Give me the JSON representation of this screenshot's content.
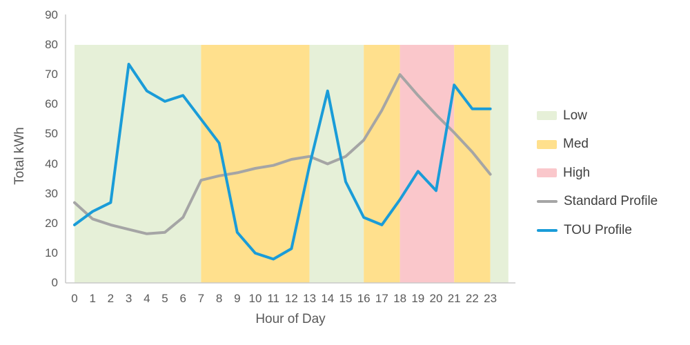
{
  "chart_data": {
    "type": "line",
    "xlabel": "Hour of Day",
    "ylabel": "Total kWh",
    "x": [
      0,
      1,
      2,
      3,
      4,
      5,
      6,
      7,
      8,
      9,
      10,
      11,
      12,
      13,
      14,
      15,
      16,
      17,
      18,
      19,
      20,
      21,
      22,
      23
    ],
    "y_ticks": [
      0,
      10,
      20,
      30,
      40,
      50,
      60,
      70,
      80,
      90
    ],
    "ylim": [
      0,
      90
    ],
    "grid": false,
    "series": [
      {
        "name": "Standard Profile",
        "color": "#a5a5a5",
        "values": [
          27,
          21.5,
          19.5,
          18,
          16.5,
          17,
          22,
          34.5,
          36,
          37,
          38.5,
          39.5,
          41.5,
          42.5,
          40,
          42.5,
          48,
          58,
          70,
          63,
          56.5,
          50.5,
          44,
          36.5
        ]
      },
      {
        "name": "TOU Profile",
        "color": "#1a9cd8",
        "values": [
          19.5,
          24,
          27,
          73.5,
          64.5,
          61,
          63,
          55,
          47,
          17,
          10,
          8,
          11.5,
          39.5,
          64.5,
          34,
          22,
          19.5,
          28,
          37.5,
          31,
          66.5,
          58.5,
          58.5
        ]
      }
    ],
    "bands": [
      {
        "name": "Low",
        "color": "#e6f0d8",
        "start_hour": 0,
        "end_hour": 7
      },
      {
        "name": "Med",
        "color": "#ffe08d",
        "start_hour": 7,
        "end_hour": 13
      },
      {
        "name": "Low",
        "color": "#e6f0d8",
        "start_hour": 13,
        "end_hour": 16
      },
      {
        "name": "Med",
        "color": "#ffe08d",
        "start_hour": 16,
        "end_hour": 18
      },
      {
        "name": "High",
        "color": "#fac7cb",
        "start_hour": 18,
        "end_hour": 21
      },
      {
        "name": "Med",
        "color": "#ffe08d",
        "start_hour": 21,
        "end_hour": 23
      },
      {
        "name": "Low",
        "color": "#e6f0d8",
        "start_hour": 23,
        "end_hour": 24
      }
    ],
    "band_value_range": [
      0,
      80
    ],
    "legend": {
      "position": "right",
      "items": [
        {
          "label": "Low",
          "swatch": "rect",
          "color": "#e6f0d8"
        },
        {
          "label": "Med",
          "swatch": "rect",
          "color": "#ffe08d"
        },
        {
          "label": "High",
          "swatch": "rect",
          "color": "#fac7cb"
        },
        {
          "label": "Standard Profile",
          "swatch": "line",
          "color": "#a5a5a5"
        },
        {
          "label": "TOU Profile",
          "swatch": "line",
          "color": "#1a9cd8"
        }
      ]
    },
    "colors": {
      "axis_line": "#c9c9c9",
      "tick_text": "#595959",
      "legend_text": "#404040",
      "background": "#ffffff"
    }
  }
}
